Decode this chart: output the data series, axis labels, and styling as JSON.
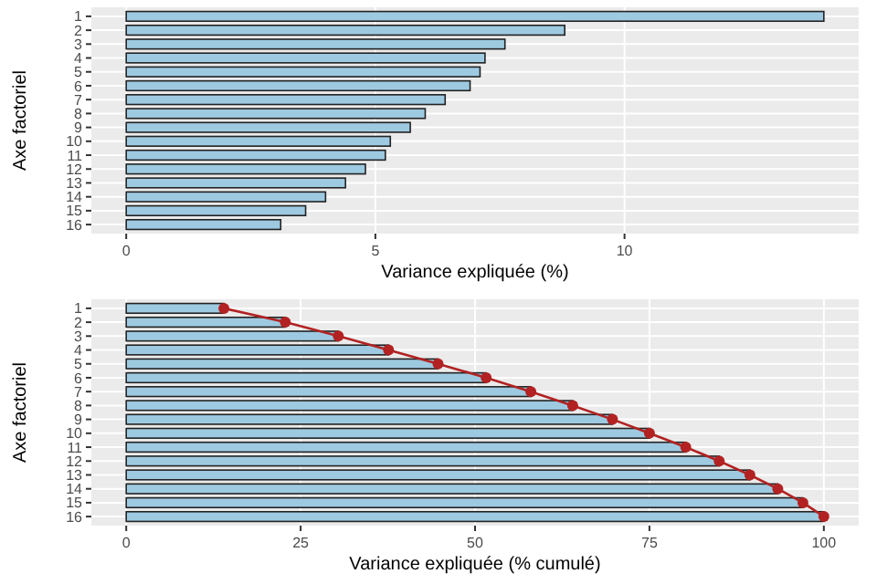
{
  "chart_data": [
    {
      "type": "bar",
      "orientation": "horizontal",
      "xlabel": "Variance expliquée (%)",
      "ylabel": "Axe factoriel",
      "categories": [
        "1",
        "2",
        "3",
        "4",
        "5",
        "6",
        "7",
        "8",
        "9",
        "10",
        "11",
        "12",
        "13",
        "14",
        "15",
        "16"
      ],
      "xlim": [
        -0.7,
        14.7
      ],
      "xticks": [
        0,
        5,
        10
      ],
      "grid": true,
      "series": [
        {
          "color": "#9ecae1",
          "values": [
            14.0,
            8.8,
            7.6,
            7.2,
            7.1,
            6.9,
            6.4,
            6.0,
            5.7,
            5.3,
            5.2,
            4.8,
            4.4,
            4.0,
            3.6,
            3.1
          ]
        }
      ]
    },
    {
      "type": "bar",
      "orientation": "horizontal",
      "xlabel": "Variance expliquée (% cumulé)",
      "ylabel": "Axe factoriel",
      "categories": [
        "1",
        "2",
        "3",
        "4",
        "5",
        "6",
        "7",
        "8",
        "9",
        "10",
        "11",
        "12",
        "13",
        "14",
        "15",
        "16"
      ],
      "xlim": [
        -5,
        105
      ],
      "xticks": [
        0,
        25,
        50,
        75,
        100
      ],
      "grid": true,
      "marker": "circle",
      "series": [
        {
          "color": "#9ecae1",
          "values": [
            14.0,
            22.8,
            30.4,
            37.6,
            44.7,
            51.6,
            58.0,
            64.0,
            69.7,
            75.0,
            80.2,
            85.0,
            89.4,
            93.4,
            97.0,
            100
          ]
        },
        {
          "type": "line",
          "color": "#b22222",
          "values": [
            14.0,
            22.8,
            30.4,
            37.6,
            44.7,
            51.6,
            58.0,
            64.0,
            69.7,
            75.0,
            80.2,
            85.0,
            89.4,
            93.4,
            97.0,
            100
          ]
        }
      ]
    }
  ]
}
